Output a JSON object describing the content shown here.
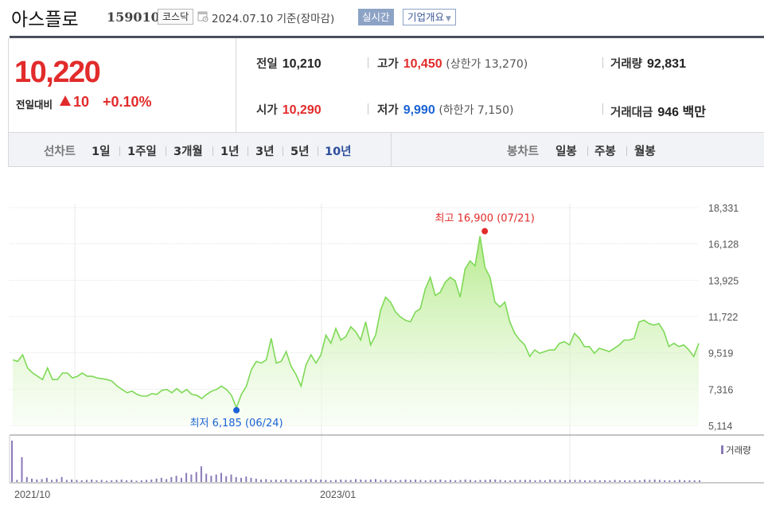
{
  "header": {
    "stock_name": "아스플로",
    "stock_code": "159010",
    "market": "코스닥",
    "base_date": "2024.07.10  기준(장마감)",
    "realtime_label": "실시간",
    "company_label": "기업개요"
  },
  "summary": {
    "price": "10,220",
    "change_label": "전일대비",
    "change_amount": "10",
    "change_rate": "+0.10%",
    "prev_close_label": "전일",
    "prev_close": "10,210",
    "open_label": "시가",
    "open": "10,290",
    "high_label": "고가",
    "high": "10,450",
    "upper_limit": "(상한가 13,270)",
    "low_label": "저가",
    "low": "9,990",
    "lower_limit": "(하한가 7,150)",
    "volume_label": "거래량",
    "volume": "92,831",
    "amount_label": "거래대금",
    "amount": "946 백만"
  },
  "tabs": {
    "line_chart_label": "선차트",
    "periods": [
      "1일",
      "1주일",
      "3개월",
      "1년",
      "3년",
      "5년",
      "10년"
    ],
    "active_period": "10년",
    "candle_chart_label": "봉차트",
    "candles": [
      "일봉",
      "주봉",
      "월봉"
    ]
  },
  "colors": {
    "up": "#e22b2b",
    "down": "#1b63d6",
    "line": "#7ed957",
    "area": "#c8f0a8",
    "volume": "#8a7ab8"
  },
  "chart_data": {
    "type": "area",
    "y_ticks": [
      "18,331",
      "16,128",
      "13,925",
      "11,722",
      "9,519",
      "7,316",
      "5,114"
    ],
    "ylim": [
      5114,
      18331
    ],
    "x_tick_labels": [
      "2021/10",
      "2023/01"
    ],
    "max_label": "최고 16,900 (07/21)",
    "min_label": "최저 6,185 (06/24)",
    "max_value": 16900,
    "min_value": 6185,
    "volume_legend": "거래량",
    "series": [
      {
        "values": [
          9100,
          9000,
          9400,
          8600,
          8300,
          8100,
          7900,
          8600,
          7900,
          7900,
          8300,
          8300,
          8000,
          8100,
          8300,
          8100,
          8100,
          8000,
          7950,
          7900,
          7800,
          7500,
          7300,
          7100,
          7200,
          7000,
          6900,
          6900,
          7050,
          7000,
          7250,
          7300,
          7100,
          7350,
          7100,
          7300,
          7000,
          6950,
          6750,
          7000,
          7200,
          7300,
          7500,
          7300,
          6950,
          6185,
          7000,
          7500,
          8500,
          9000,
          8900,
          9100,
          10400,
          8900,
          9000,
          9600,
          8700,
          8200,
          7500,
          8800,
          9400,
          8900,
          9400,
          10600,
          10100,
          11000,
          10300,
          10500,
          11100,
          10800,
          10300,
          11400,
          10000,
          10600,
          12100,
          12900,
          12600,
          12000,
          11700,
          11500,
          11400,
          12000,
          12200,
          13400,
          14100,
          13000,
          13200,
          13800,
          14100,
          13900,
          12900,
          14600,
          15100,
          14800,
          16600,
          14700,
          14100,
          12600,
          12300,
          12600,
          11400,
          10700,
          10300,
          10000,
          9300,
          9700,
          9500,
          9600,
          9700,
          9700,
          10100,
          10200,
          10000,
          10700,
          10400,
          9900,
          9900,
          9500,
          9800,
          9700,
          9600,
          9800,
          10000,
          10300,
          10300,
          10400,
          11400,
          11500,
          11300,
          11200,
          11300,
          10800,
          9900,
          10100,
          9900,
          10000,
          9700,
          9300,
          10100
        ]
      }
    ],
    "volume_values": [
      1.0,
      0.05,
      0.6,
      0.12,
      0.08,
      0.06,
      0.07,
      0.1,
      0.05,
      0.07,
      0.12,
      0.05,
      0.06,
      0.05,
      0.04,
      0.05,
      0.06,
      0.04,
      0.05,
      0.03,
      0.04,
      0.05,
      0.06,
      0.04,
      0.05,
      0.03,
      0.04,
      0.05,
      0.06,
      0.08,
      0.1,
      0.07,
      0.12,
      0.15,
      0.1,
      0.22,
      0.18,
      0.24,
      0.38,
      0.2,
      0.15,
      0.18,
      0.22,
      0.14,
      0.18,
      0.12,
      0.1,
      0.13,
      0.1,
      0.08,
      0.06,
      0.07,
      0.05,
      0.06,
      0.05,
      0.07,
      0.06,
      0.05,
      0.05,
      0.06,
      0.07,
      0.05,
      0.06,
      0.05,
      0.04,
      0.05,
      0.06,
      0.05,
      0.05,
      0.07,
      0.06,
      0.05,
      0.06,
      0.07,
      0.05,
      0.06,
      0.05,
      0.04,
      0.05,
      0.06,
      0.05,
      0.06,
      0.05,
      0.04,
      0.05,
      0.05,
      0.06,
      0.04,
      0.05,
      0.04,
      0.05,
      0.06,
      0.05,
      0.04,
      0.05,
      0.05,
      0.06,
      0.06,
      0.05,
      0.04,
      0.04,
      0.05,
      0.05,
      0.05,
      0.05,
      0.04,
      0.05,
      0.04,
      0.06,
      0.05,
      0.05,
      0.04,
      0.05,
      0.05,
      0.05,
      0.04,
      0.04,
      0.05,
      0.04,
      0.04,
      0.04,
      0.05,
      0.04,
      0.04,
      0.04,
      0.05,
      0.04,
      0.06,
      0.05,
      0.06,
      0.05,
      0.04,
      0.04,
      0.04,
      0.05,
      0.04,
      0.04,
      0.04,
      0.04
    ]
  }
}
